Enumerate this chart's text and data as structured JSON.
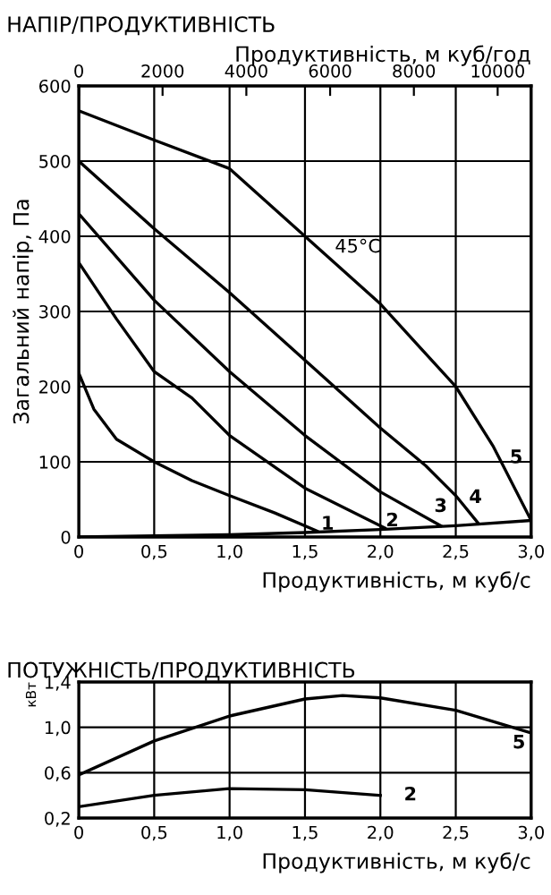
{
  "chart_data": [
    {
      "type": "line",
      "title": "НАПІР/ПРОДУКТИВНІСТЬ",
      "x2label": "Продуктивність, м куб/год",
      "xlabel": "Продуктивність, м куб/с",
      "ylabel": "Загальний напір, Па",
      "xlim": [
        0,
        3
      ],
      "xticks": [
        0,
        {
          "value": 0.5,
          "label": "0,5"
        },
        {
          "value": 1.0,
          "label": "1,0"
        },
        {
          "value": 1.5,
          "label": "1,5"
        },
        {
          "value": 2.0,
          "label": "2,0"
        },
        {
          "value": 2.5,
          "label": "2,5"
        },
        {
          "value": 3.0,
          "label": "3,0"
        }
      ],
      "x2lim": [
        0,
        10800
      ],
      "x2ticks": [
        0,
        2000,
        4000,
        6000,
        8000,
        10000
      ],
      "ylim": [
        0,
        600
      ],
      "yticks": [
        0,
        100,
        200,
        300,
        400,
        500,
        600
      ],
      "grid": true,
      "series": [
        {
          "color": "#000000",
          "x": [
            0,
            0.1,
            0.25,
            0.5,
            0.75,
            1.0,
            1.3,
            1.58
          ],
          "values": [
            218,
            170,
            130,
            100,
            75,
            55,
            32,
            8
          ]
        },
        {
          "color": "#000000",
          "x": [
            0,
            0.25,
            0.5,
            0.75,
            1.0,
            1.5,
            2.03
          ],
          "values": [
            365,
            290,
            220,
            185,
            135,
            65,
            12
          ]
        },
        {
          "color": "#000000",
          "x": [
            0,
            0.5,
            1.0,
            1.5,
            2.0,
            2.4
          ],
          "values": [
            430,
            315,
            220,
            135,
            60,
            15
          ]
        },
        {
          "color": "#000000",
          "x": [
            0,
            0.5,
            1.0,
            1.5,
            2.0,
            2.3,
            2.5,
            2.65
          ],
          "values": [
            500,
            410,
            325,
            235,
            145,
            95,
            55,
            18
          ]
        },
        {
          "color": "#000000",
          "x": [
            0,
            0.5,
            1.0,
            1.5,
            1.75,
            2.0,
            2.25,
            2.5,
            2.75,
            3.0
          ],
          "values": [
            567,
            528,
            490,
            400,
            355,
            310,
            255,
            200,
            120,
            22
          ]
        },
        {
          "color": "#000000",
          "x": [
            0,
            1.0,
            1.5,
            2.0,
            2.5,
            3.0
          ],
          "values": [
            0,
            3,
            6,
            10,
            15,
            22
          ]
        }
      ],
      "annotations": [
        "1",
        "2",
        "3",
        "4",
        "5",
        "45°C"
      ]
    },
    {
      "type": "line",
      "title": "ПОТУЖНІСТЬ/ПРОДУКТИВНІСТЬ",
      "xlabel": "Продуктивність, м куб/с",
      "ylabel": "кВт",
      "xlim": [
        0,
        3
      ],
      "xticks": [
        0,
        {
          "value": 0.5,
          "label": "0,5"
        },
        {
          "value": 1.0,
          "label": "1,0"
        },
        {
          "value": 1.5,
          "label": "1,5"
        },
        {
          "value": 2.0,
          "label": "2,0"
        },
        {
          "value": 2.5,
          "label": "2,5"
        },
        {
          "value": 3.0,
          "label": "3,0"
        }
      ],
      "ylim": [
        0.2,
        1.4
      ],
      "yticks": [
        {
          "value": 0.2,
          "label": "0,2"
        },
        {
          "value": 0.6,
          "label": "0,6"
        },
        {
          "value": 1.0,
          "label": "1,0"
        },
        {
          "value": 1.4,
          "label": "1,4"
        }
      ],
      "grid": true,
      "series": [
        {
          "color": "#000000",
          "x": [
            0,
            0.5,
            1.0,
            1.5,
            1.75,
            2.0,
            2.5,
            3.0
          ],
          "values": [
            0.58,
            0.88,
            1.1,
            1.25,
            1.28,
            1.26,
            1.15,
            0.95
          ]
        },
        {
          "color": "#000000",
          "x": [
            0,
            0.5,
            1.0,
            1.5,
            2.0
          ],
          "values": [
            0.3,
            0.4,
            0.46,
            0.45,
            0.4
          ]
        }
      ],
      "annotations": [
        "5",
        "2"
      ]
    }
  ]
}
